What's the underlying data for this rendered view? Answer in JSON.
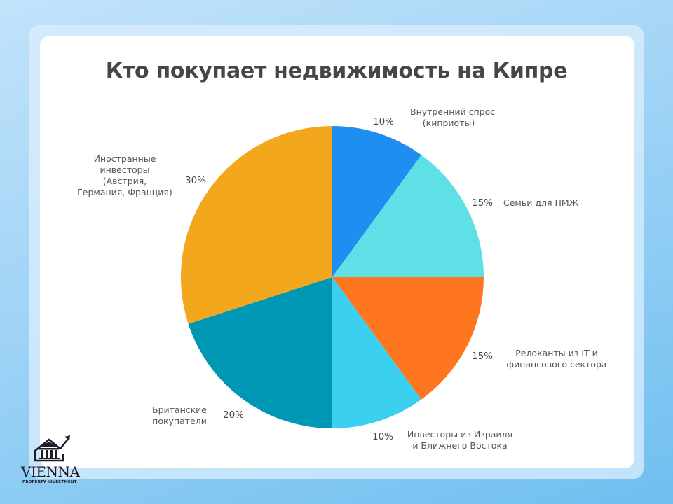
{
  "title": "Кто покупает недвижимость на Кипре",
  "chart_data": {
    "type": "pie",
    "title": "Кто покупает недвижимость на Кипре",
    "categories": [
      "Внутренний спрос (киприоты)",
      "Семьи для ПМЖ",
      "Релоканты из IT и финансового сектора",
      "Инвесторы из Израиля и Ближнего Востока",
      "Британские покупатели",
      "Иностранные инвесторы (Австрия, Германия, Франция)"
    ],
    "values": [
      10,
      15,
      15,
      10,
      20,
      30
    ],
    "unit": "%",
    "colors": [
      "#1e8ef0",
      "#5fe0e6",
      "#ff7621",
      "#3bcff0",
      "#0097b5",
      "#f2a71c"
    ],
    "start_angle": "12 o'clock, clockwise",
    "legend": "none (direct labels)"
  },
  "labels": {
    "s0": {
      "pct": "10%",
      "line1": "Внутренний спрос",
      "line2": "(киприоты)"
    },
    "s1": {
      "pct": "15%",
      "line1": "Семьи для ПМЖ"
    },
    "s2": {
      "pct": "15%",
      "line1": "Релоканты из IT и",
      "line2": "финансового сектора"
    },
    "s3": {
      "pct": "10%",
      "line1": "Инвесторы из Израиля",
      "line2": "и Ближнего Востока"
    },
    "s4": {
      "pct": "20%",
      "line1": "Британские",
      "line2": "покупатели"
    },
    "s5": {
      "pct": "30%",
      "line1": "Иностранные",
      "line2": "инвесторы",
      "line3": "(Австрия,",
      "line4": "Германия, Франция)"
    }
  },
  "logo": {
    "name": "VIENNA",
    "subtitle": "PROPERTY INVESTMENT"
  }
}
